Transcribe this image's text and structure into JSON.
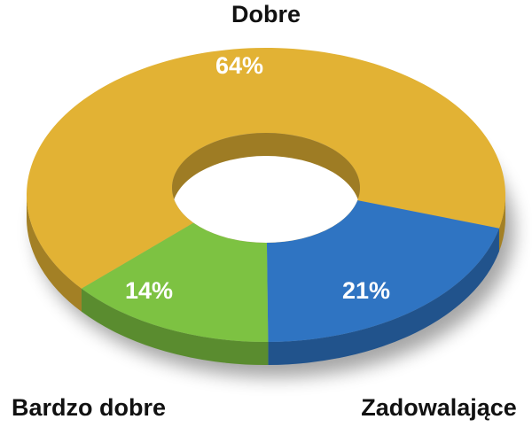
{
  "chart_data": {
    "type": "donut",
    "categories": [
      "Dobre",
      "Zadowalające",
      "Bardzo dobre"
    ],
    "values": [
      64,
      21,
      14
    ],
    "value_labels": [
      "64%",
      "21%",
      "14%"
    ],
    "colors": [
      "#e2b234",
      "#2f74c2",
      "#7dc242"
    ]
  }
}
